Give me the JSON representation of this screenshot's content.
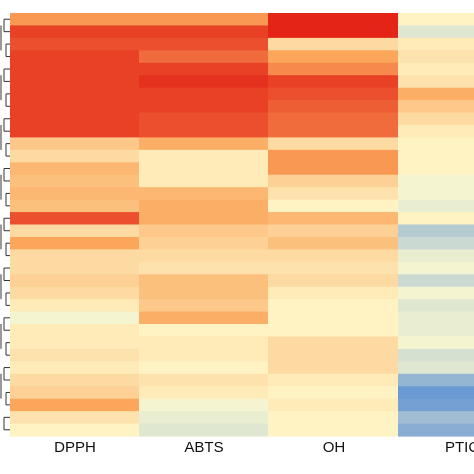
{
  "chart_data": {
    "type": "heatmap",
    "title": "",
    "xlabel": "",
    "ylabel": "",
    "columns": [
      "DPPH",
      "ABTS",
      "OH",
      "PTIC"
    ],
    "color_scale": {
      "low": "#2b6fd6",
      "mid": "#fffcd0",
      "high": "#e0150f",
      "range": [
        -1,
        1
      ]
    },
    "row_dendrogram": true,
    "values": [
      [
        0.55,
        0.55,
        0.95,
        0.05
      ],
      [
        0.85,
        0.85,
        0.95,
        -0.15
      ],
      [
        0.8,
        0.8,
        0.2,
        0.1
      ],
      [
        0.85,
        0.7,
        0.5,
        0.15
      ],
      [
        0.85,
        0.85,
        0.6,
        0.1
      ],
      [
        0.85,
        0.9,
        0.85,
        0.15
      ],
      [
        0.85,
        0.85,
        0.8,
        0.45
      ],
      [
        0.85,
        0.85,
        0.75,
        0.3
      ],
      [
        0.85,
        0.8,
        0.7,
        0.2
      ],
      [
        0.85,
        0.8,
        0.7,
        0.1
      ],
      [
        0.3,
        0.45,
        0.2,
        0.05
      ],
      [
        0.2,
        0.1,
        0.55,
        0.05
      ],
      [
        0.4,
        0.1,
        0.55,
        0.05
      ],
      [
        0.35,
        0.1,
        0.25,
        -0.05
      ],
      [
        0.4,
        0.4,
        0.15,
        -0.05
      ],
      [
        0.35,
        0.45,
        0.05,
        -0.1
      ],
      [
        0.8,
        0.45,
        0.4,
        0.05
      ],
      [
        0.2,
        0.3,
        0.25,
        -0.35
      ],
      [
        0.5,
        0.25,
        0.35,
        -0.25
      ],
      [
        0.2,
        0.2,
        0.2,
        -0.1
      ],
      [
        0.2,
        0.15,
        0.15,
        -0.05
      ],
      [
        0.25,
        0.35,
        0.2,
        -0.25
      ],
      [
        0.2,
        0.35,
        0.1,
        -0.05
      ],
      [
        0.1,
        0.3,
        0.05,
        -0.15
      ],
      [
        -0.05,
        0.45,
        0.05,
        -0.1
      ],
      [
        0.1,
        0.05,
        0.05,
        -0.1
      ],
      [
        0.1,
        0.1,
        0.2,
        -0.05
      ],
      [
        0.15,
        0.1,
        0.2,
        -0.2
      ],
      [
        0.1,
        0.05,
        0.2,
        -0.15
      ],
      [
        0.2,
        0.15,
        0.1,
        -0.5
      ],
      [
        0.25,
        0.1,
        0.05,
        -0.7
      ],
      [
        0.5,
        -0.05,
        0.1,
        -0.65
      ],
      [
        0.15,
        -0.1,
        0.05,
        -0.45
      ],
      [
        0.05,
        -0.15,
        0.05,
        -0.55
      ]
    ]
  }
}
